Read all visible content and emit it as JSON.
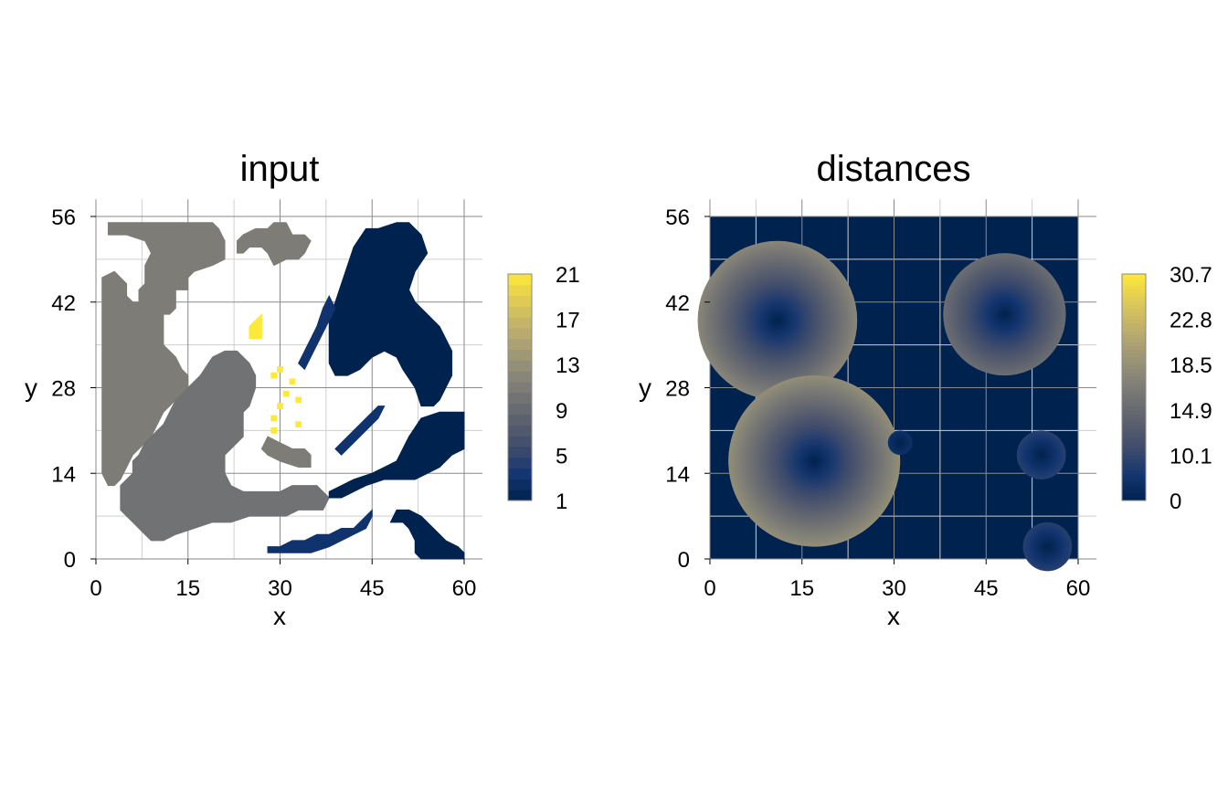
{
  "chart_data": [
    {
      "type": "heatmap",
      "title": "input",
      "xlabel": "x",
      "ylabel": "y",
      "xlim": [
        0,
        60
      ],
      "ylim": [
        0,
        56
      ],
      "xticks": [
        "0",
        "15",
        "30",
        "45",
        "60"
      ],
      "xtick_values": [
        0,
        15,
        30,
        45,
        60
      ],
      "yticks": [
        "0",
        "14",
        "28",
        "42",
        "56"
      ],
      "ytick_values": [
        0,
        14,
        28,
        42,
        56
      ],
      "grid": true,
      "colorbar": {
        "labels": [
          "1",
          "5",
          "9",
          "13",
          "17",
          "21"
        ],
        "min": 1,
        "max": 21,
        "discrete_levels": 21
      },
      "colormap": [
        "#00224e",
        "#123570",
        "#3b496c",
        "#575d6d",
        "#707173",
        "#8a8779",
        "#a59c74",
        "#c3b369",
        "#e1cc55",
        "#fee838"
      ],
      "regions": [
        {
          "label": 11,
          "polygon": [
            [
              2,
              53
            ],
            [
              2,
              55
            ],
            [
              19,
              55
            ],
            [
              20,
              54
            ],
            [
              21,
              52
            ],
            [
              21,
              49
            ],
            [
              19,
              48
            ],
            [
              16,
              47
            ],
            [
              15,
              46
            ],
            [
              15,
              44
            ],
            [
              13,
              44
            ],
            [
              13,
              41
            ],
            [
              12,
              40
            ],
            [
              11,
              40
            ],
            [
              11,
              35
            ],
            [
              13,
              33
            ],
            [
              14,
              31
            ],
            [
              15,
              30
            ],
            [
              15,
              28
            ],
            [
              13,
              26
            ],
            [
              11,
              24
            ],
            [
              10,
              22
            ],
            [
              9,
              20
            ],
            [
              7,
              18
            ],
            [
              6,
              17
            ],
            [
              5,
              15
            ],
            [
              4,
              13
            ],
            [
              3,
              12
            ],
            [
              2,
              12
            ],
            [
              1,
              14
            ],
            [
              1,
              20
            ],
            [
              1,
              30
            ],
            [
              1,
              40
            ],
            [
              1,
              46
            ],
            [
              3,
              47
            ],
            [
              4,
              46
            ],
            [
              5,
              45
            ],
            [
              5,
              43
            ],
            [
              6,
              42
            ],
            [
              7,
              42
            ],
            [
              7,
              44
            ],
            [
              8,
              45
            ],
            [
              8,
              48
            ],
            [
              9,
              50
            ],
            [
              8,
              52
            ],
            [
              5,
              53
            ]
          ]
        },
        {
          "label": 11,
          "polygon": [
            [
              23,
              52
            ],
            [
              24,
              53
            ],
            [
              26,
              54
            ],
            [
              28,
              54
            ],
            [
              29,
              55
            ],
            [
              31,
              55
            ],
            [
              32,
              53
            ],
            [
              33,
              53
            ],
            [
              34,
              53
            ],
            [
              35,
              52
            ],
            [
              34,
              50
            ],
            [
              33,
              49
            ],
            [
              31,
              49
            ],
            [
              29,
              48
            ],
            [
              28,
              50
            ],
            [
              27,
              51
            ],
            [
              25,
              51
            ],
            [
              24,
              50
            ],
            [
              23,
              50
            ]
          ]
        },
        {
          "label": 10,
          "polygon": [
            [
              15,
              28
            ],
            [
              17,
              30
            ],
            [
              19,
              33
            ],
            [
              21,
              34
            ],
            [
              23,
              34
            ],
            [
              25,
              32
            ],
            [
              26,
              30
            ],
            [
              26,
              28
            ],
            [
              25,
              25
            ],
            [
              24,
              24
            ],
            [
              24,
              20
            ],
            [
              22,
              18
            ],
            [
              21,
              17
            ],
            [
              21,
              14
            ],
            [
              22,
              12
            ],
            [
              24,
              11
            ],
            [
              26,
              11
            ],
            [
              28,
              11
            ],
            [
              30,
              11
            ],
            [
              32,
              12
            ],
            [
              34,
              12
            ],
            [
              36,
              12
            ],
            [
              37,
              11
            ],
            [
              38,
              10
            ],
            [
              37,
              8
            ],
            [
              35,
              8
            ],
            [
              33,
              8
            ],
            [
              31,
              7
            ],
            [
              28,
              7
            ],
            [
              25,
              7
            ],
            [
              22,
              6
            ],
            [
              19,
              6
            ],
            [
              16,
              5
            ],
            [
              13,
              4
            ],
            [
              11,
              3
            ],
            [
              9,
              3
            ],
            [
              8,
              4
            ],
            [
              7,
              5
            ],
            [
              6,
              6
            ],
            [
              5,
              7
            ],
            [
              4,
              8
            ],
            [
              4,
              12
            ],
            [
              5,
              13
            ],
            [
              6,
              14
            ],
            [
              6,
              16
            ],
            [
              7,
              17
            ],
            [
              8,
              19
            ],
            [
              9,
              20
            ],
            [
              10,
              21
            ],
            [
              11,
              22
            ],
            [
              12,
              24
            ],
            [
              13,
              26
            ]
          ]
        },
        {
          "label": 11,
          "polygon": [
            [
              28,
              20
            ],
            [
              30,
              19
            ],
            [
              32,
              18
            ],
            [
              34,
              18
            ],
            [
              35,
              17
            ],
            [
              35,
              15
            ],
            [
              33,
              15
            ],
            [
              30,
              16
            ],
            [
              28,
              17
            ],
            [
              27,
              18
            ]
          ]
        },
        {
          "label": 1,
          "polygon": [
            [
              44,
              54
            ],
            [
              46,
              54
            ],
            [
              49,
              55
            ],
            [
              51,
              55
            ],
            [
              53,
              53
            ],
            [
              54,
              50
            ],
            [
              52,
              47
            ],
            [
              51,
              44
            ],
            [
              52,
              42
            ],
            [
              54,
              40
            ],
            [
              56,
              38
            ],
            [
              58,
              34
            ],
            [
              58,
              30
            ],
            [
              57,
              28
            ],
            [
              56,
              26
            ],
            [
              55,
              25
            ],
            [
              53,
              25
            ],
            [
              52,
              28
            ],
            [
              50,
              31
            ],
            [
              49,
              33
            ],
            [
              47,
              34
            ],
            [
              45,
              33
            ],
            [
              43,
              31
            ],
            [
              41,
              30
            ],
            [
              39,
              30
            ],
            [
              38,
              32
            ],
            [
              38,
              35
            ],
            [
              38,
              39
            ],
            [
              39,
              42
            ],
            [
              40,
              45
            ],
            [
              41,
              48
            ],
            [
              42,
              51
            ]
          ]
        },
        {
          "label": 1,
          "polygon": [
            [
              53,
              23
            ],
            [
              56,
              24
            ],
            [
              60,
              24
            ],
            [
              60,
              18
            ],
            [
              58,
              17
            ],
            [
              56,
              15
            ],
            [
              54,
              14
            ],
            [
              52,
              13
            ],
            [
              50,
              13
            ],
            [
              47,
              13
            ],
            [
              44,
              12
            ],
            [
              42,
              11
            ],
            [
              40,
              10
            ],
            [
              38,
              10
            ],
            [
              38,
              11
            ],
            [
              40,
              12
            ],
            [
              42,
              13
            ],
            [
              45,
              14
            ],
            [
              47,
              15
            ],
            [
              49,
              16
            ],
            [
              50,
              18
            ],
            [
              51,
              20
            ]
          ]
        },
        {
          "label": 1,
          "polygon": [
            [
              49,
              8
            ],
            [
              51,
              8
            ],
            [
              53,
              7
            ],
            [
              55,
              5
            ],
            [
              57,
              3
            ],
            [
              59,
              2
            ],
            [
              60,
              1
            ],
            [
              60,
              0
            ],
            [
              55,
              0
            ],
            [
              53,
              0
            ],
            [
              52,
              1
            ],
            [
              52,
              3
            ],
            [
              51,
              5
            ],
            [
              50,
              6
            ],
            [
              48,
              6
            ]
          ]
        },
        {
          "label": 3,
          "polygon": [
            [
              28,
              2
            ],
            [
              30,
              2
            ],
            [
              32,
              3
            ],
            [
              34,
              3
            ],
            [
              36,
              4
            ],
            [
              38,
              4
            ],
            [
              40,
              5
            ],
            [
              42,
              5
            ],
            [
              44,
              7
            ],
            [
              45,
              8
            ],
            [
              45,
              7
            ],
            [
              44,
              5
            ],
            [
              42,
              4
            ],
            [
              40,
              3
            ],
            [
              38,
              2
            ],
            [
              35,
              1
            ],
            [
              32,
              1
            ],
            [
              30,
              1
            ],
            [
              28,
              1
            ]
          ]
        },
        {
          "label": 3,
          "polygon": [
            [
              34,
              31
            ],
            [
              35,
              33
            ],
            [
              36,
              35
            ],
            [
              37,
              37
            ],
            [
              38,
              39
            ],
            [
              39,
              41
            ],
            [
              38,
              43
            ],
            [
              37,
              41
            ],
            [
              36,
              38
            ],
            [
              35,
              36
            ],
            [
              34,
              34
            ],
            [
              33,
              32
            ]
          ]
        },
        {
          "label": 3,
          "polygon": [
            [
              40,
              17
            ],
            [
              42,
              19
            ],
            [
              44,
              21
            ],
            [
              46,
              23
            ],
            [
              47,
              25
            ],
            [
              46,
              25
            ],
            [
              44,
              23
            ],
            [
              42,
              21
            ],
            [
              40,
              19
            ],
            [
              39,
              18
            ]
          ]
        },
        {
          "label": 21,
          "polygon": [
            [
              25,
              38
            ],
            [
              26,
              39
            ],
            [
              27,
              40
            ],
            [
              27,
              36
            ],
            [
              25,
              36
            ]
          ]
        }
      ],
      "dots": [
        {
          "label": 21,
          "x": 29,
          "y": 30
        },
        {
          "label": 21,
          "x": 30,
          "y": 31
        },
        {
          "label": 21,
          "x": 32,
          "y": 29
        },
        {
          "label": 21,
          "x": 31,
          "y": 27
        },
        {
          "label": 21,
          "x": 33,
          "y": 26
        },
        {
          "label": 21,
          "x": 30,
          "y": 25
        },
        {
          "label": 21,
          "x": 29,
          "y": 23
        },
        {
          "label": 21,
          "x": 33,
          "y": 22
        },
        {
          "label": 21,
          "x": 29,
          "y": 21
        }
      ]
    },
    {
      "type": "heatmap",
      "title": "distances",
      "xlabel": "x",
      "ylabel": "y",
      "xlim": [
        0,
        60
      ],
      "ylim": [
        0,
        56
      ],
      "xticks": [
        "0",
        "15",
        "30",
        "45",
        "60"
      ],
      "xtick_values": [
        0,
        15,
        30,
        45,
        60
      ],
      "yticks": [
        "0",
        "14",
        "28",
        "42",
        "56"
      ],
      "ytick_values": [
        0,
        14,
        28,
        42,
        56
      ],
      "grid": true,
      "colorbar": {
        "labels": [
          "0",
          "10.1",
          "14.9",
          "18.5",
          "22.8",
          "30.7"
        ],
        "min": 0,
        "max": 30.7,
        "discrete_levels": 0
      },
      "colormap": [
        "#00224e",
        "#123570",
        "#3b496c",
        "#575d6d",
        "#707173",
        "#8a8779",
        "#a59c74",
        "#c3b369",
        "#e1cc55",
        "#fee838"
      ],
      "background_value": 0,
      "centers": [
        {
          "x": 11,
          "y": 39,
          "radius": 13
        },
        {
          "x": 17,
          "y": 16,
          "radius": 14
        },
        {
          "x": 48,
          "y": 40,
          "radius": 10
        },
        {
          "x": 31,
          "y": 19,
          "radius": 2
        },
        {
          "x": 54,
          "y": 17,
          "radius": 4
        },
        {
          "x": 55,
          "y": 2,
          "radius": 4
        }
      ]
    }
  ]
}
